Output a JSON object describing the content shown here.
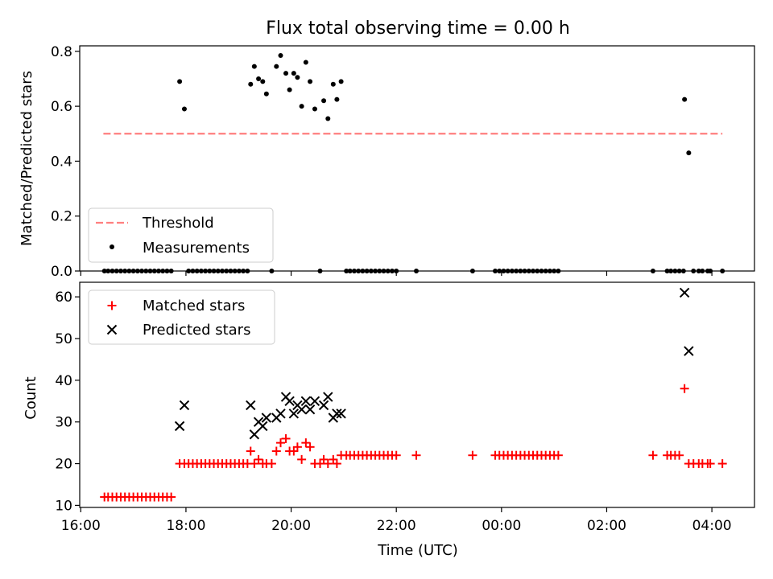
{
  "figure": {
    "title": "Flux total observing time = 0.00 h"
  },
  "chart_data": [
    {
      "type": "scatter",
      "panel": "top",
      "ylabel": "Matched/Predicted stars",
      "xlabel": "",
      "ylim": [
        0,
        0.82
      ],
      "yticks": [
        0.0,
        0.2,
        0.4,
        0.6,
        0.8
      ],
      "yticklabels": [
        "0.0",
        "0.2",
        "0.4",
        "0.6",
        "0.8"
      ],
      "threshold": {
        "name": "Threshold",
        "value": 0.5,
        "x_start": 16.43,
        "x_end": 28.2,
        "color": "#ff7f7f"
      },
      "series": [
        {
          "name": "Measurements",
          "color": "#000000",
          "points": [
            [
              16.45,
              0
            ],
            [
              16.52,
              0
            ],
            [
              16.6,
              0
            ],
            [
              16.68,
              0
            ],
            [
              16.76,
              0
            ],
            [
              16.84,
              0
            ],
            [
              16.92,
              0
            ],
            [
              17.0,
              0
            ],
            [
              17.08,
              0
            ],
            [
              17.16,
              0
            ],
            [
              17.24,
              0
            ],
            [
              17.32,
              0
            ],
            [
              17.4,
              0
            ],
            [
              17.48,
              0
            ],
            [
              17.56,
              0
            ],
            [
              17.64,
              0
            ],
            [
              17.72,
              0
            ],
            [
              17.88,
              0.69
            ],
            [
              17.97,
              0.59
            ],
            [
              18.05,
              0
            ],
            [
              18.13,
              0
            ],
            [
              18.21,
              0
            ],
            [
              18.29,
              0
            ],
            [
              18.37,
              0
            ],
            [
              18.45,
              0
            ],
            [
              18.53,
              0
            ],
            [
              18.61,
              0
            ],
            [
              18.69,
              0
            ],
            [
              18.77,
              0
            ],
            [
              18.85,
              0
            ],
            [
              18.93,
              0
            ],
            [
              19.01,
              0
            ],
            [
              19.09,
              0
            ],
            [
              19.17,
              0
            ],
            [
              19.63,
              0
            ],
            [
              19.23,
              0.68
            ],
            [
              19.3,
              0.745
            ],
            [
              19.38,
              0.7
            ],
            [
              19.46,
              0.69
            ],
            [
              19.53,
              0.645
            ],
            [
              19.72,
              0.745
            ],
            [
              19.8,
              0.785
            ],
            [
              19.9,
              0.72
            ],
            [
              19.97,
              0.66
            ],
            [
              20.05,
              0.72
            ],
            [
              20.12,
              0.705
            ],
            [
              20.2,
              0.6
            ],
            [
              20.28,
              0.76
            ],
            [
              20.36,
              0.69
            ],
            [
              20.45,
              0.59
            ],
            [
              20.62,
              0.62
            ],
            [
              20.7,
              0.555
            ],
            [
              20.8,
              0.68
            ],
            [
              20.87,
              0.625
            ],
            [
              20.95,
              0.69
            ],
            [
              20.55,
              0
            ],
            [
              21.05,
              0
            ],
            [
              21.12,
              0
            ],
            [
              21.2,
              0
            ],
            [
              21.28,
              0
            ],
            [
              21.36,
              0
            ],
            [
              21.44,
              0
            ],
            [
              21.52,
              0
            ],
            [
              21.6,
              0
            ],
            [
              21.68,
              0
            ],
            [
              21.76,
              0
            ],
            [
              21.84,
              0
            ],
            [
              21.92,
              0
            ],
            [
              22.0,
              0
            ],
            [
              22.38,
              0
            ],
            [
              23.45,
              0
            ],
            [
              23.88,
              0
            ],
            [
              23.96,
              0
            ],
            [
              24.04,
              0
            ],
            [
              24.12,
              0
            ],
            [
              24.2,
              0
            ],
            [
              24.28,
              0
            ],
            [
              24.36,
              0
            ],
            [
              24.44,
              0
            ],
            [
              24.52,
              0
            ],
            [
              24.6,
              0
            ],
            [
              24.68,
              0
            ],
            [
              24.76,
              0
            ],
            [
              24.84,
              0
            ],
            [
              24.92,
              0
            ],
            [
              25.0,
              0
            ],
            [
              25.08,
              0
            ],
            [
              26.88,
              0
            ],
            [
              27.15,
              0
            ],
            [
              27.22,
              0
            ],
            [
              27.3,
              0
            ],
            [
              27.38,
              0
            ],
            [
              27.46,
              0
            ],
            [
              27.48,
              0.625
            ],
            [
              27.56,
              0.43
            ],
            [
              27.65,
              0
            ],
            [
              27.75,
              0
            ],
            [
              27.82,
              0
            ],
            [
              27.92,
              0
            ],
            [
              27.97,
              0
            ],
            [
              28.2,
              0
            ]
          ]
        }
      ],
      "legend": {
        "placement": "lower left",
        "entries": [
          {
            "label": "Threshold",
            "marker": "dashed-line",
            "color": "#ff7f7f"
          },
          {
            "label": "Measurements",
            "marker": "dot",
            "color": "#000000"
          }
        ]
      }
    },
    {
      "type": "scatter",
      "panel": "bottom",
      "xlabel": "Time (UTC)",
      "ylabel": "Count",
      "ylim": [
        9.5,
        63.5
      ],
      "yticks": [
        10,
        20,
        30,
        40,
        50,
        60
      ],
      "yticklabels": [
        "10",
        "20",
        "30",
        "40",
        "50",
        "60"
      ],
      "xlim": [
        15.98,
        28.81
      ],
      "xticks": [
        16,
        18,
        20,
        22,
        24,
        26,
        28
      ],
      "xticklabels": [
        "16:00",
        "18:00",
        "20:00",
        "22:00",
        "00:00",
        "02:00",
        "04:00"
      ],
      "series": [
        {
          "name": "Matched stars",
          "marker": "plus",
          "color": "#ff0000",
          "points": [
            [
              16.45,
              12
            ],
            [
              16.52,
              12
            ],
            [
              16.6,
              12
            ],
            [
              16.68,
              12
            ],
            [
              16.76,
              12
            ],
            [
              16.84,
              12
            ],
            [
              16.92,
              12
            ],
            [
              17.0,
              12
            ],
            [
              17.08,
              12
            ],
            [
              17.16,
              12
            ],
            [
              17.24,
              12
            ],
            [
              17.32,
              12
            ],
            [
              17.4,
              12
            ],
            [
              17.48,
              12
            ],
            [
              17.56,
              12
            ],
            [
              17.64,
              12
            ],
            [
              17.72,
              12
            ],
            [
              17.88,
              20
            ],
            [
              17.97,
              20
            ],
            [
              18.05,
              20
            ],
            [
              18.13,
              20
            ],
            [
              18.21,
              20
            ],
            [
              18.29,
              20
            ],
            [
              18.37,
              20
            ],
            [
              18.45,
              20
            ],
            [
              18.53,
              20
            ],
            [
              18.61,
              20
            ],
            [
              18.69,
              20
            ],
            [
              18.77,
              20
            ],
            [
              18.85,
              20
            ],
            [
              18.93,
              20
            ],
            [
              19.01,
              20
            ],
            [
              19.09,
              20
            ],
            [
              19.17,
              20
            ],
            [
              19.23,
              23
            ],
            [
              19.3,
              20
            ],
            [
              19.38,
              21
            ],
            [
              19.46,
              20
            ],
            [
              19.53,
              20
            ],
            [
              19.63,
              20
            ],
            [
              19.72,
              23
            ],
            [
              19.8,
              25
            ],
            [
              19.9,
              26
            ],
            [
              19.97,
              23
            ],
            [
              20.05,
              23
            ],
            [
              20.12,
              24
            ],
            [
              20.2,
              21
            ],
            [
              20.28,
              25
            ],
            [
              20.36,
              24
            ],
            [
              20.45,
              20
            ],
            [
              20.55,
              20
            ],
            [
              20.62,
              21
            ],
            [
              20.7,
              20
            ],
            [
              20.8,
              21
            ],
            [
              20.87,
              20
            ],
            [
              20.95,
              22
            ],
            [
              21.05,
              22
            ],
            [
              21.12,
              22
            ],
            [
              21.2,
              22
            ],
            [
              21.28,
              22
            ],
            [
              21.36,
              22
            ],
            [
              21.44,
              22
            ],
            [
              21.52,
              22
            ],
            [
              21.6,
              22
            ],
            [
              21.68,
              22
            ],
            [
              21.76,
              22
            ],
            [
              21.84,
              22
            ],
            [
              21.92,
              22
            ],
            [
              22.0,
              22
            ],
            [
              22.38,
              22
            ],
            [
              23.45,
              22
            ],
            [
              23.88,
              22
            ],
            [
              23.96,
              22
            ],
            [
              24.04,
              22
            ],
            [
              24.12,
              22
            ],
            [
              24.2,
              22
            ],
            [
              24.28,
              22
            ],
            [
              24.36,
              22
            ],
            [
              24.44,
              22
            ],
            [
              24.52,
              22
            ],
            [
              24.6,
              22
            ],
            [
              24.68,
              22
            ],
            [
              24.76,
              22
            ],
            [
              24.84,
              22
            ],
            [
              24.92,
              22
            ],
            [
              25.0,
              22
            ],
            [
              25.08,
              22
            ],
            [
              26.88,
              22
            ],
            [
              27.15,
              22
            ],
            [
              27.22,
              22
            ],
            [
              27.3,
              22
            ],
            [
              27.38,
              22
            ],
            [
              27.48,
              38
            ],
            [
              27.56,
              20
            ],
            [
              27.65,
              20
            ],
            [
              27.75,
              20
            ],
            [
              27.82,
              20
            ],
            [
              27.92,
              20
            ],
            [
              27.97,
              20
            ],
            [
              28.2,
              20
            ]
          ]
        },
        {
          "name": "Predicted stars",
          "marker": "x",
          "color": "#000000",
          "points": [
            [
              17.88,
              29
            ],
            [
              17.97,
              34
            ],
            [
              19.23,
              34
            ],
            [
              19.3,
              27
            ],
            [
              19.38,
              30
            ],
            [
              19.46,
              29
            ],
            [
              19.53,
              31
            ],
            [
              19.72,
              31
            ],
            [
              19.8,
              32
            ],
            [
              19.9,
              36
            ],
            [
              19.97,
              35
            ],
            [
              20.05,
              32
            ],
            [
              20.12,
              34
            ],
            [
              20.2,
              33
            ],
            [
              20.28,
              35
            ],
            [
              20.36,
              33
            ],
            [
              20.45,
              35
            ],
            [
              20.62,
              34
            ],
            [
              20.7,
              36
            ],
            [
              20.8,
              31
            ],
            [
              20.87,
              32
            ],
            [
              20.95,
              32
            ],
            [
              27.48,
              61
            ],
            [
              27.56,
              47
            ]
          ]
        }
      ],
      "legend": {
        "placement": "upper left",
        "entries": [
          {
            "label": "Matched stars",
            "marker": "plus",
            "color": "#ff0000"
          },
          {
            "label": "Predicted stars",
            "marker": "x",
            "color": "#000000"
          }
        ]
      }
    }
  ]
}
